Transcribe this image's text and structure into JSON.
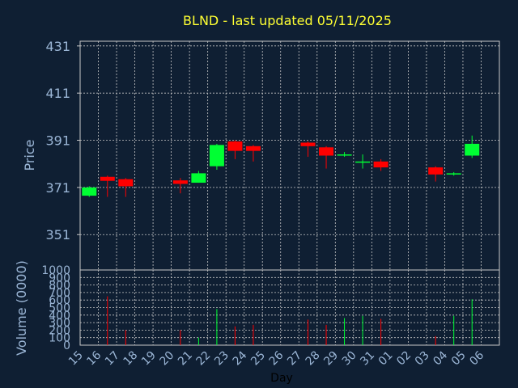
{
  "title": "BLND - last updated 05/11/2025",
  "colors": {
    "background": "#0f1f33",
    "title": "#ffff33",
    "axis_text": "#9bb6d6",
    "grid": "#c8c8c8",
    "up": "#00ff33",
    "down": "#ff0000"
  },
  "chart_data": [
    {
      "type": "candlestick",
      "ylabel": "Price",
      "ylim": [
        336,
        433
      ],
      "yticks": [
        351,
        371,
        391,
        411,
        431
      ],
      "grid": true,
      "candles": [
        {
          "day": "15",
          "open": 367.5,
          "high": 371.5,
          "low": 367.0,
          "close": 371.0
        },
        {
          "day": "16",
          "open": 375.5,
          "high": 376.0,
          "low": 367.0,
          "close": 373.8
        },
        {
          "day": "17",
          "open": 374.5,
          "high": 375.0,
          "low": 367.0,
          "close": 371.5
        },
        {
          "day": "20",
          "open": 374.0,
          "high": 375.0,
          "low": 368.5,
          "close": 372.5
        },
        {
          "day": "21",
          "open": 373.0,
          "high": 378.0,
          "low": 373.0,
          "close": 377.0
        },
        {
          "day": "22",
          "open": 380.0,
          "high": 389.5,
          "low": 378.5,
          "close": 389.0
        },
        {
          "day": "23",
          "open": 390.5,
          "high": 391.0,
          "low": 383.0,
          "close": 386.5
        },
        {
          "day": "24",
          "open": 388.5,
          "high": 389.0,
          "low": 382.0,
          "close": 386.5
        },
        {
          "day": "27",
          "open": 390.0,
          "high": 390.5,
          "low": 384.0,
          "close": 388.5
        },
        {
          "day": "28",
          "open": 388.0,
          "high": 388.5,
          "low": 379.0,
          "close": 384.5
        },
        {
          "day": "29",
          "open": 384.5,
          "high": 386.0,
          "low": 384.0,
          "close": 385.0
        },
        {
          "day": "30",
          "open": 381.5,
          "high": 385.0,
          "low": 379.0,
          "close": 382.0
        },
        {
          "day": "31",
          "open": 382.0,
          "high": 383.0,
          "low": 378.0,
          "close": 379.5
        },
        {
          "day": "03",
          "open": 379.5,
          "high": 380.0,
          "low": 373.5,
          "close": 376.5
        },
        {
          "day": "04",
          "open": 376.5,
          "high": 377.5,
          "low": 376.0,
          "close": 377.0
        },
        {
          "day": "05",
          "open": 384.5,
          "high": 393.0,
          "low": 383.5,
          "close": 389.5
        }
      ]
    },
    {
      "type": "bar",
      "ylabel": "Volume (0000)",
      "xlabel": "Day",
      "ylim": [
        0,
        1000
      ],
      "yticks": [
        0,
        100,
        200,
        300,
        400,
        500,
        600,
        700,
        800,
        900,
        1000
      ],
      "grid": true,
      "categories": [
        "15",
        "16",
        "17",
        "18",
        "19",
        "20",
        "21",
        "22",
        "23",
        "24",
        "25",
        "26",
        "27",
        "28",
        "29",
        "30",
        "31",
        "01",
        "02",
        "03",
        "04",
        "05",
        "06"
      ],
      "bars": [
        {
          "day": "16",
          "value": 650,
          "direction": "down"
        },
        {
          "day": "17",
          "value": 200,
          "direction": "down"
        },
        {
          "day": "20",
          "value": 200,
          "direction": "down"
        },
        {
          "day": "21",
          "value": 100,
          "direction": "up"
        },
        {
          "day": "22",
          "value": 480,
          "direction": "up"
        },
        {
          "day": "23",
          "value": 250,
          "direction": "down"
        },
        {
          "day": "24",
          "value": 270,
          "direction": "down"
        },
        {
          "day": "27",
          "value": 340,
          "direction": "down"
        },
        {
          "day": "28",
          "value": 270,
          "direction": "down"
        },
        {
          "day": "29",
          "value": 360,
          "direction": "up"
        },
        {
          "day": "30",
          "value": 390,
          "direction": "up"
        },
        {
          "day": "31",
          "value": 350,
          "direction": "down"
        },
        {
          "day": "03",
          "value": 120,
          "direction": "down"
        },
        {
          "day": "04",
          "value": 390,
          "direction": "up"
        },
        {
          "day": "05",
          "value": 610,
          "direction": "up"
        }
      ]
    }
  ]
}
